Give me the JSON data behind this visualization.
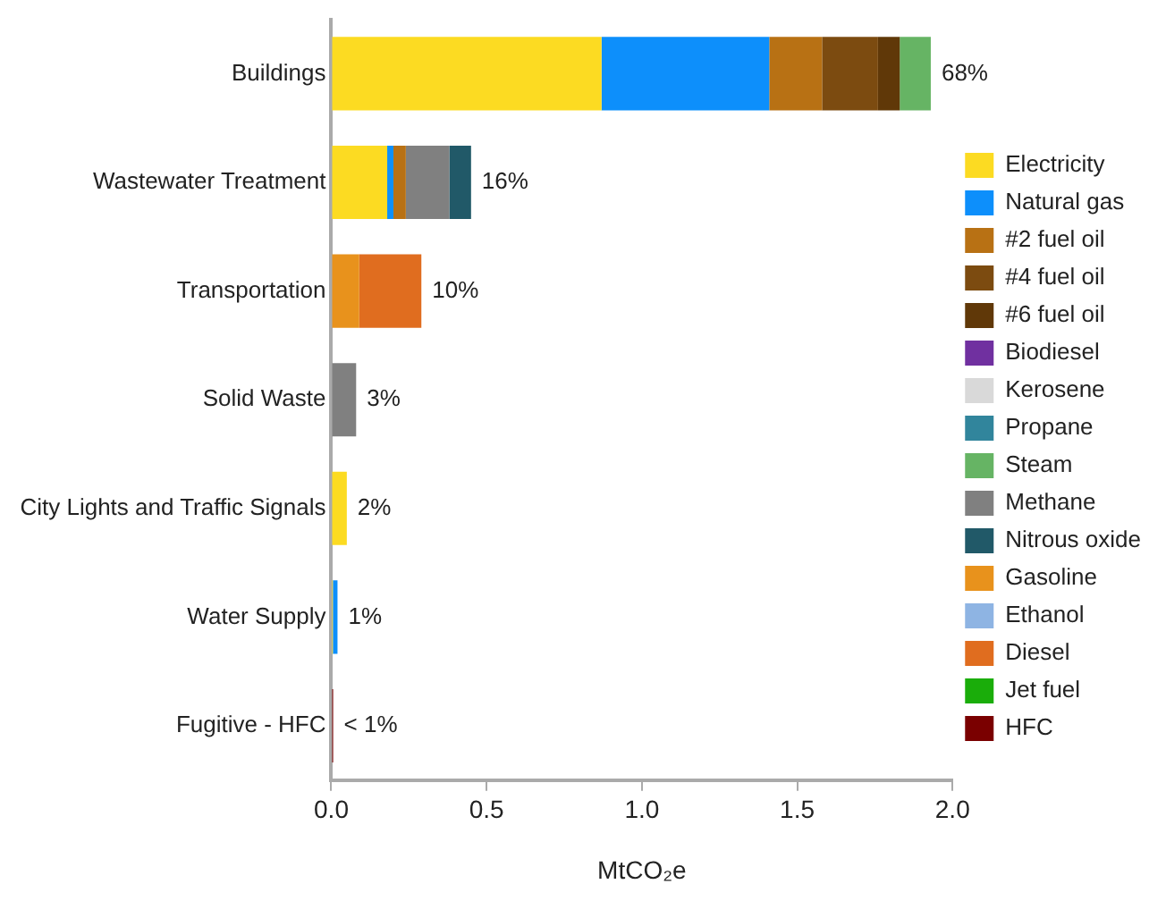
{
  "chart_data": {
    "type": "bar",
    "orientation": "horizontal",
    "stacked": true,
    "categories": [
      "Buildings",
      "Wastewater Treatment",
      "Transportation",
      "Solid Waste",
      "City Lights and Traffic Signals",
      "Water Supply",
      "Fugitive - HFC"
    ],
    "series": [
      {
        "name": "Electricity",
        "color": "#fcdb22",
        "values": [
          0.87,
          0.18,
          null,
          null,
          0.05,
          0.005,
          null
        ]
      },
      {
        "name": "Natural gas",
        "color": "#0d8ffb",
        "values": [
          0.54,
          0.02,
          null,
          null,
          null,
          0.015,
          null
        ]
      },
      {
        "name": "#2 fuel oil",
        "color": "#b87114",
        "values": [
          0.17,
          0.04,
          null,
          null,
          null,
          null,
          null
        ]
      },
      {
        "name": "#4 fuel oil",
        "color": "#7c4b10",
        "values": [
          0.18,
          null,
          null,
          null,
          null,
          null,
          null
        ]
      },
      {
        "name": "#6 fuel oil",
        "color": "#603808",
        "values": [
          0.07,
          null,
          null,
          null,
          null,
          null,
          null
        ]
      },
      {
        "name": "Biodiesel",
        "color": "#7030a0",
        "values": [
          null,
          null,
          null,
          null,
          null,
          null,
          null
        ]
      },
      {
        "name": "Kerosene",
        "color": "#d9d9d9",
        "values": [
          null,
          null,
          null,
          null,
          null,
          null,
          null
        ]
      },
      {
        "name": "Propane",
        "color": "#31859c",
        "values": [
          null,
          null,
          null,
          null,
          null,
          null,
          null
        ]
      },
      {
        "name": "Steam",
        "color": "#66b464",
        "values": [
          0.1,
          null,
          null,
          null,
          null,
          null,
          null
        ]
      },
      {
        "name": "Methane",
        "color": "#808080",
        "values": [
          null,
          0.14,
          null,
          0.08,
          null,
          null,
          null
        ]
      },
      {
        "name": "Nitrous oxide",
        "color": "#215968",
        "values": [
          null,
          0.07,
          null,
          null,
          null,
          null,
          null
        ]
      },
      {
        "name": "Gasoline",
        "color": "#e8921c",
        "values": [
          null,
          null,
          0.09,
          null,
          null,
          null,
          null
        ]
      },
      {
        "name": "Ethanol",
        "color": "#8eb4e3",
        "values": [
          null,
          null,
          null,
          null,
          null,
          null,
          null
        ]
      },
      {
        "name": "Diesel",
        "color": "#e06d1f",
        "values": [
          null,
          null,
          0.2,
          null,
          null,
          null,
          null
        ]
      },
      {
        "name": "Jet fuel",
        "color": "#1aad0a",
        "values": [
          null,
          null,
          null,
          null,
          null,
          null,
          null
        ]
      },
      {
        "name": "HFC",
        "color": "#7a0000",
        "values": [
          null,
          null,
          null,
          null,
          null,
          null,
          0.006
        ]
      }
    ],
    "annotations": [
      {
        "text": "68%",
        "x": 1.93,
        "y": "Buildings"
      },
      {
        "text": "16%",
        "x": 0.45,
        "y": "Wastewater Treatment"
      },
      {
        "text": "10%",
        "x": 0.29,
        "y": "Transportation"
      },
      {
        "text": "3%",
        "x": 0.08,
        "y": "Solid Waste"
      },
      {
        "text": "2%",
        "x": 0.05,
        "y": "City Lights and Traffic Signals"
      },
      {
        "text": "1%",
        "x": 0.02,
        "y": "Water Supply"
      },
      {
        "text": "< 1%",
        "x": 0.006,
        "y": "Fugitive - HFC"
      }
    ],
    "xlabel": "MtCO₂e",
    "xlim": [
      0,
      2
    ],
    "xticks": [
      {
        "value": 0,
        "label": "0.0"
      },
      {
        "value": 0.5,
        "label": "0.5"
      },
      {
        "value": 1,
        "label": "1.0"
      },
      {
        "value": 1.5,
        "label": "1.5"
      },
      {
        "value": 2,
        "label": "2.0"
      }
    ],
    "grid": false,
    "legend": "right"
  }
}
